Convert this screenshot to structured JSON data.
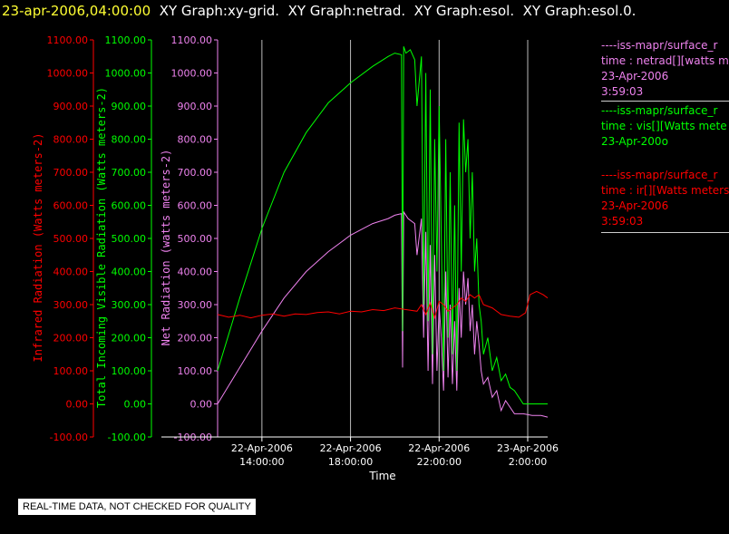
{
  "header": {
    "timestamp": "23-apr-2006,04:00:00",
    "graphs": [
      "XY Graph:xy-grid.",
      "XY Graph:netrad.",
      "XY Graph:esol.",
      "XY Graph:esol.0."
    ]
  },
  "colors": {
    "netrad": "#ee82ee",
    "vis": "#00ff00",
    "ir": "#ff0000",
    "grid": "#bbbbbb",
    "header_date": "#ffff33"
  },
  "legend": [
    {
      "line1": "----iss-mapr/surface_r",
      "line2": "time : netrad[][watts m",
      "line3": "23-Apr-2006",
      "line4": "3:59:03",
      "color": "#ee82ee"
    },
    {
      "line1": "----iss-mapr/surface_r",
      "line2": "time : vis[][Watts mete",
      "line3": "23-Apr-200o",
      "line4": "",
      "color": "#00ff00"
    },
    {
      "line1": "----iss-mapr/surface_r",
      "line2": "time : ir[][Watts meters",
      "line3": "23-Apr-2006",
      "line4": "3:59:03",
      "color": "#ff0000"
    }
  ],
  "notice": "REAL-TIME DATA, NOT CHECKED FOR QUALITY",
  "chart_data": {
    "type": "line",
    "xlabel": "Time",
    "x_ticks": [
      {
        "t": 14,
        "line1": "22-Apr-2006",
        "line2": "14:00:00"
      },
      {
        "t": 18,
        "line1": "22-Apr-2006",
        "line2": "18:00:00"
      },
      {
        "t": 22,
        "line1": "22-Apr-2006",
        "line2": "22:00:00"
      },
      {
        "t": 26,
        "line1": "23-Apr-2006",
        "line2": "2:00:00"
      }
    ],
    "xlim": [
      12.0,
      26.9
    ],
    "ylim": [
      -100,
      1100
    ],
    "y_ticks": [
      -100,
      0,
      100,
      200,
      300,
      400,
      500,
      600,
      700,
      800,
      900,
      1000,
      1100
    ],
    "y_tick_labels": [
      "-100.00",
      "0.00",
      "100.00",
      "200.00",
      "300.00",
      "400.00",
      "500.00",
      "600.00",
      "700.00",
      "800.00",
      "900.00",
      "1000.00",
      "1100.00"
    ],
    "axes": [
      {
        "id": "ir",
        "label": "Infrared Radiation (Watts meters-2)",
        "color": "#ff0000"
      },
      {
        "id": "vis",
        "label": "Total Incoming Visible Radiation (Watts meters-2)",
        "color": "#00ff00"
      },
      {
        "id": "netrad",
        "label": "Net Radiation (watts meters-2)",
        "color": "#ee82ee"
      }
    ],
    "series": [
      {
        "name": "netrad",
        "color": "#ee82ee",
        "x": [
          12.0,
          13.0,
          14.0,
          15.0,
          16.0,
          17.0,
          18.0,
          19.0,
          19.7,
          20.0,
          20.3,
          20.35,
          20.4,
          20.6,
          20.9,
          21.0,
          21.2,
          21.3,
          21.4,
          21.5,
          21.6,
          21.7,
          21.8,
          21.9,
          22.0,
          22.1,
          22.2,
          22.3,
          22.4,
          22.5,
          22.6,
          22.7,
          22.8,
          22.9,
          23.0,
          23.1,
          23.2,
          23.3,
          23.4,
          23.5,
          23.6,
          23.7,
          23.8,
          23.9,
          24.0,
          24.2,
          24.4,
          24.6,
          24.8,
          25.0,
          25.4,
          25.8,
          26.2,
          26.6,
          26.9
        ],
        "y": [
          0,
          110,
          220,
          320,
          400,
          460,
          510,
          545,
          560,
          570,
          575,
          110,
          580,
          560,
          545,
          450,
          560,
          200,
          520,
          100,
          480,
          60,
          450,
          100,
          300,
          200,
          40,
          400,
          80,
          300,
          60,
          250,
          40,
          350,
          200,
          400,
          300,
          380,
          220,
          300,
          150,
          250,
          180,
          100,
          60,
          80,
          20,
          40,
          -20,
          10,
          -30,
          -30,
          -35,
          -35,
          -40
        ]
      },
      {
        "name": "vis",
        "color": "#00ff00",
        "x": [
          12.0,
          13.0,
          14.0,
          15.0,
          16.0,
          17.0,
          18.0,
          19.0,
          19.7,
          20.0,
          20.3,
          20.35,
          20.4,
          20.5,
          20.7,
          20.9,
          21.0,
          21.2,
          21.3,
          21.4,
          21.5,
          21.6,
          21.7,
          21.8,
          21.9,
          22.0,
          22.1,
          22.2,
          22.3,
          22.4,
          22.5,
          22.6,
          22.7,
          22.8,
          22.9,
          23.0,
          23.1,
          23.2,
          23.3,
          23.4,
          23.5,
          23.6,
          23.7,
          23.8,
          23.9,
          24.0,
          24.2,
          24.4,
          24.6,
          24.8,
          25.0,
          25.2,
          25.4,
          25.8,
          26.2,
          26.6,
          26.9
        ],
        "y": [
          100,
          320,
          530,
          700,
          820,
          910,
          970,
          1020,
          1050,
          1060,
          1055,
          220,
          1080,
          1060,
          1070,
          1040,
          900,
          1050,
          300,
          1000,
          250,
          950,
          150,
          800,
          400,
          900,
          500,
          100,
          800,
          200,
          700,
          150,
          600,
          100,
          850,
          400,
          860,
          700,
          800,
          500,
          700,
          400,
          500,
          300,
          250,
          150,
          200,
          100,
          140,
          70,
          90,
          50,
          40,
          0,
          0,
          0,
          0
        ]
      },
      {
        "name": "ir",
        "color": "#ff0000",
        "x": [
          12.0,
          12.5,
          13.0,
          13.5,
          14.0,
          14.5,
          15.0,
          15.5,
          16.0,
          16.5,
          17.0,
          17.5,
          18.0,
          18.5,
          19.0,
          19.5,
          20.0,
          20.5,
          21.0,
          21.2,
          21.4,
          21.6,
          21.8,
          22.0,
          22.2,
          22.4,
          22.6,
          22.8,
          23.0,
          23.2,
          23.4,
          23.6,
          23.8,
          24.0,
          24.4,
          24.8,
          25.2,
          25.6,
          25.9,
          26.1,
          26.4,
          26.7,
          26.9
        ],
        "y": [
          270,
          262,
          268,
          260,
          268,
          272,
          265,
          272,
          270,
          276,
          278,
          272,
          280,
          278,
          285,
          282,
          290,
          285,
          280,
          300,
          270,
          305,
          260,
          310,
          300,
          280,
          290,
          300,
          320,
          310,
          330,
          320,
          330,
          300,
          290,
          270,
          265,
          262,
          275,
          330,
          340,
          330,
          320
        ]
      }
    ]
  }
}
